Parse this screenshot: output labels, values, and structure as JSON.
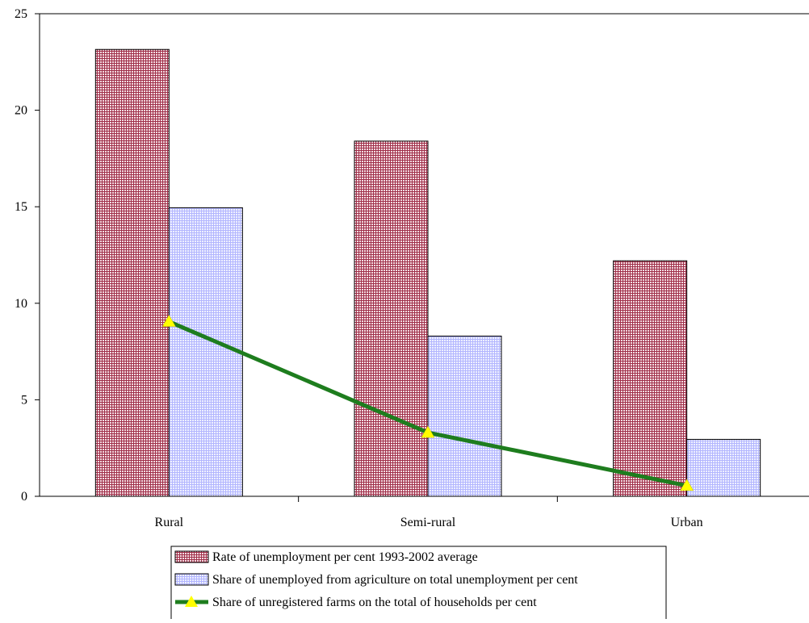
{
  "chart_data": {
    "type": "bar",
    "categories": [
      "Rural",
      "Semi-rural",
      "Urban"
    ],
    "series": [
      {
        "name": "Rate of unemployment per cent  1993-2002 average",
        "kind": "bar",
        "pattern": "crosshatch",
        "color": "#a0304a",
        "values": [
          23.15,
          18.4,
          12.2
        ]
      },
      {
        "name": "Share of unemployed from agriculture on total unemployment per cent",
        "kind": "bar",
        "pattern": "grid",
        "color": "#9999ff",
        "values": [
          14.95,
          8.3,
          2.95
        ]
      },
      {
        "name": "Share of unregistered farms on the total of households per cent",
        "kind": "line",
        "color": "#1e7d1e",
        "marker": "triangle",
        "marker_color": "#ffff00",
        "values": [
          9.05,
          3.3,
          0.55
        ]
      }
    ],
    "ylim": [
      0,
      25
    ],
    "yticks": [
      0,
      5,
      10,
      15,
      20,
      25
    ],
    "title": "",
    "xlabel": "",
    "ylabel": "",
    "grid": false,
    "legend": "bottom"
  }
}
